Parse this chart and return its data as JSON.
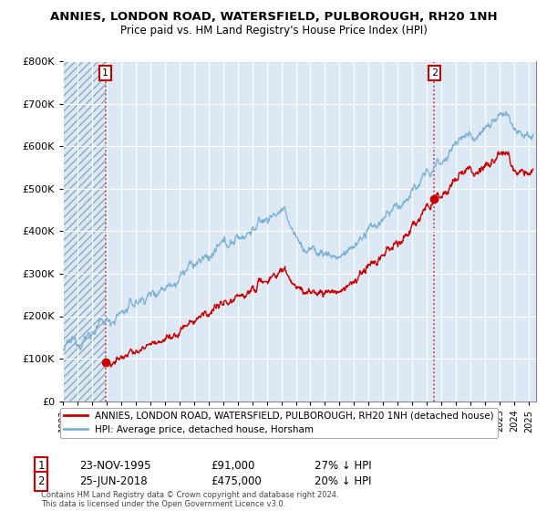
{
  "title": "ANNIES, LONDON ROAD, WATERSFIELD, PULBOROUGH, RH20 1NH",
  "subtitle": "Price paid vs. HM Land Registry's House Price Index (HPI)",
  "sale1_date": "23-NOV-1995",
  "sale1_price": 91000,
  "sale1_label": "27% ↓ HPI",
  "sale2_date": "25-JUN-2018",
  "sale2_price": 475000,
  "sale2_label": "20% ↓ HPI",
  "legend_red": "ANNIES, LONDON ROAD, WATERSFIELD, PULBOROUGH, RH20 1NH (detached house)",
  "legend_blue": "HPI: Average price, detached house, Horsham",
  "footer": "Contains HM Land Registry data © Crown copyright and database right 2024.\nThis data is licensed under the Open Government Licence v3.0.",
  "ylim": [
    0,
    800000
  ],
  "red_color": "#cc0000",
  "blue_color": "#7ab0d4",
  "plot_bg_color": "#dce9f5",
  "hatch_color": "#b0c4d8",
  "grid_color": "#ffffff",
  "bg_color": "#ffffff",
  "t1": 1995.917,
  "t2": 2018.5
}
